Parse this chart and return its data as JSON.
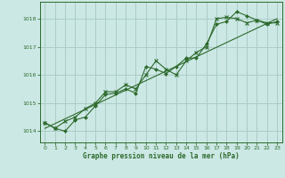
{
  "title": "Graphe pression niveau de la mer (hPa)",
  "background_color": "#cce8e4",
  "plot_bg_color": "#cce8e4",
  "grid_color": "#aaccc8",
  "line_color": "#2d6a2d",
  "marker_color": "#2d6a2d",
  "xlim": [
    -0.5,
    23.5
  ],
  "ylim": [
    1013.6,
    1018.6
  ],
  "yticks": [
    1014,
    1015,
    1016,
    1017,
    1018
  ],
  "xticks": [
    0,
    1,
    2,
    3,
    4,
    5,
    6,
    7,
    8,
    9,
    10,
    11,
    12,
    13,
    14,
    15,
    16,
    17,
    18,
    19,
    20,
    21,
    22,
    23
  ],
  "series1_x": [
    0,
    1,
    2,
    3,
    4,
    5,
    6,
    7,
    8,
    9,
    10,
    11,
    12,
    13,
    14,
    15,
    16,
    17,
    18,
    19,
    20,
    21,
    22,
    23
  ],
  "series1_y": [
    1014.3,
    1014.1,
    1014.0,
    1014.4,
    1014.5,
    1014.9,
    1015.3,
    1015.35,
    1015.5,
    1015.35,
    1016.3,
    1016.2,
    1016.05,
    1016.3,
    1016.6,
    1016.6,
    1017.1,
    1017.8,
    1017.9,
    1018.25,
    1018.1,
    1017.95,
    1017.8,
    1017.9
  ],
  "series2_x": [
    0,
    1,
    2,
    3,
    4,
    5,
    6,
    7,
    8,
    9,
    10,
    11,
    12,
    13,
    14,
    15,
    16,
    17,
    18,
    19,
    20,
    21,
    22,
    23
  ],
  "series2_y": [
    1014.3,
    1014.1,
    1014.35,
    1014.5,
    1014.8,
    1015.0,
    1015.4,
    1015.4,
    1015.65,
    1015.5,
    1016.0,
    1016.5,
    1016.2,
    1016.0,
    1016.5,
    1016.8,
    1017.0,
    1018.0,
    1018.05,
    1018.0,
    1017.85,
    1017.95,
    1017.85,
    1017.85
  ],
  "series3_x": [
    0,
    23
  ],
  "series3_y": [
    1014.1,
    1018.0
  ]
}
